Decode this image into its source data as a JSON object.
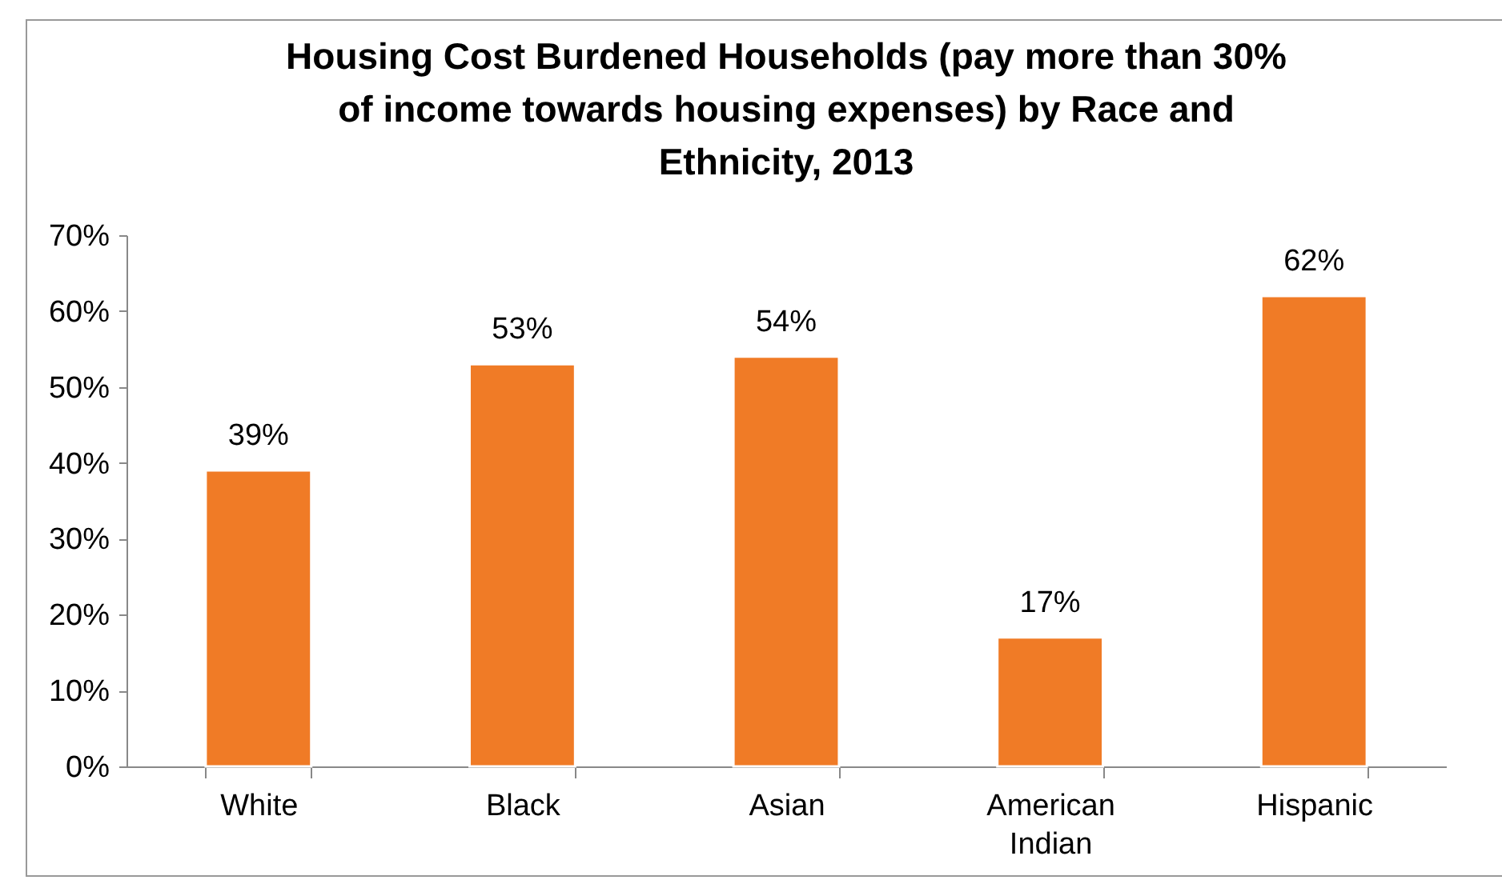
{
  "chart_data": {
    "type": "bar",
    "title": "Housing Cost Burdened Households (pay more than 30% of income towards housing expenses) by Race and Ethnicity, 2013",
    "categories": [
      "White",
      "Black",
      "Asian",
      "American Indian",
      "Hispanic"
    ],
    "values": [
      39,
      53,
      54,
      17,
      62
    ],
    "value_labels": [
      "39%",
      "53%",
      "54%",
      "17%",
      "62%"
    ],
    "color": "#f07b26",
    "ylim": [
      0,
      70
    ],
    "yticks": [
      {
        "value": 0,
        "label": "0%"
      },
      {
        "value": 10,
        "label": "10%"
      },
      {
        "value": 20,
        "label": "20%"
      },
      {
        "value": 30,
        "label": "30%"
      },
      {
        "value": 40,
        "label": "40%"
      },
      {
        "value": 50,
        "label": "50%"
      },
      {
        "value": 60,
        "label": "60%"
      },
      {
        "value": 70,
        "label": "70%"
      }
    ],
    "grid": false
  }
}
